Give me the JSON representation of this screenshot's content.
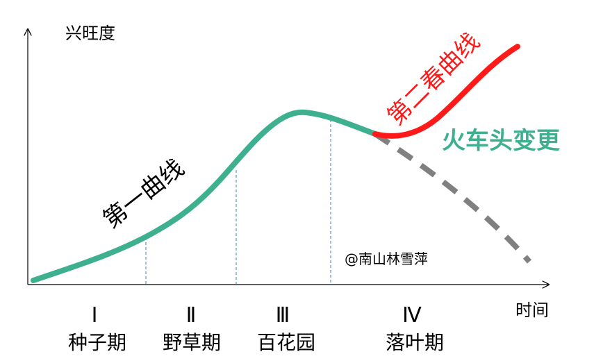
{
  "axes": {
    "y_label": "兴旺度",
    "x_label": "时间"
  },
  "curves": {
    "first": {
      "label": "第一曲线",
      "color": "#3fb08f"
    },
    "second": {
      "label": "第二春曲线",
      "color": "#ff1a1a"
    },
    "decline": {
      "color": "#808080"
    }
  },
  "annotation": {
    "text": "火车头变更",
    "color": "#3fb08f"
  },
  "watermark": "@南山林雪萍",
  "stages": [
    {
      "numeral": "Ⅰ",
      "name": "种子期"
    },
    {
      "numeral": "Ⅱ",
      "name": "野草期"
    },
    {
      "numeral": "Ⅲ",
      "name": "百花园"
    },
    {
      "numeral": "Ⅳ",
      "name": "落叶期"
    }
  ]
}
